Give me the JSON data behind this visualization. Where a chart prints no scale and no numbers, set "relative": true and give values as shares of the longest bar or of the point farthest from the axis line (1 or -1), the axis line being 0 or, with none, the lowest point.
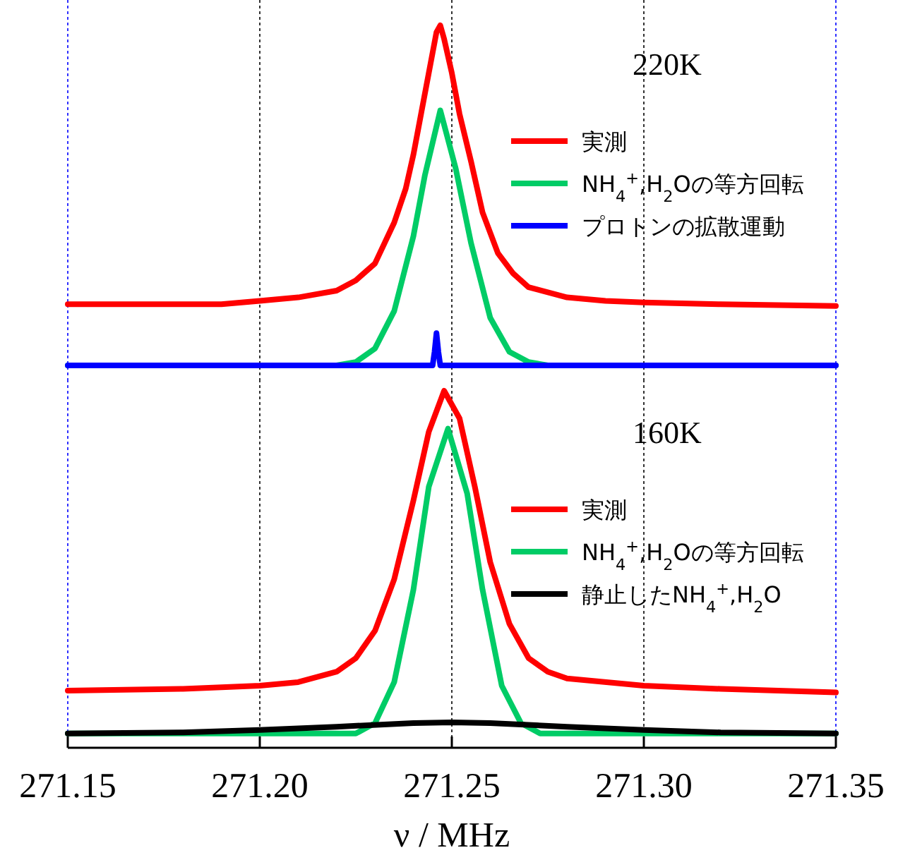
{
  "chart_data": [
    {
      "type": "line",
      "relative": true,
      "legend_title": "220K",
      "legend": "top right",
      "grid": "x",
      "tick_labels": false,
      "xlim": [
        271.15,
        271.35
      ],
      "xticks": [
        271.15,
        271.2,
        271.25,
        271.3,
        271.35
      ],
      "marker": "none",
      "line_style": "solid",
      "series": [
        {
          "name": "実測",
          "color": "#ff0000",
          "x": [
            271.15,
            271.17,
            271.19,
            271.2,
            271.21,
            271.22,
            271.225,
            271.23,
            271.235,
            271.238,
            271.24,
            271.242,
            271.244,
            271.246,
            271.247,
            271.248,
            271.25,
            271.252,
            271.255,
            271.258,
            271.262,
            271.266,
            271.27,
            271.28,
            271.29,
            271.3,
            271.32,
            271.35
          ],
          "values": [
            0.18,
            0.18,
            0.18,
            0.19,
            0.2,
            0.22,
            0.25,
            0.3,
            0.42,
            0.52,
            0.62,
            0.74,
            0.86,
            0.98,
            1.0,
            0.96,
            0.86,
            0.74,
            0.6,
            0.45,
            0.33,
            0.27,
            0.23,
            0.2,
            0.19,
            0.185,
            0.18,
            0.175
          ]
        },
        {
          "name": "NH$_{4}$$^{+}$,H$_{2}$Oの等方回転",
          "color": "#00cc66",
          "x": [
            271.15,
            271.22,
            271.225,
            271.23,
            271.235,
            271.24,
            271.243,
            271.247,
            271.251,
            271.255,
            271.26,
            271.265,
            271.27,
            271.275,
            271.35
          ],
          "values": [
            0,
            0,
            0.01,
            0.05,
            0.16,
            0.38,
            0.56,
            0.75,
            0.58,
            0.36,
            0.14,
            0.04,
            0.01,
            0,
            0
          ]
        },
        {
          "name": "プロトンの拡散運動",
          "color": "#0000ff",
          "x": [
            271.15,
            271.245,
            271.2455,
            271.246,
            271.2465,
            271.247,
            271.35
          ],
          "values": [
            0,
            0,
            0.04,
            0.095,
            0.04,
            0,
            0
          ]
        }
      ]
    },
    {
      "type": "line",
      "relative": true,
      "legend_title": "160K",
      "legend": "top right",
      "grid": "x",
      "tick_labels": "x",
      "xlabel": "ν / MHz",
      "xlim": [
        271.15,
        271.35
      ],
      "xticks": [
        271.15,
        {
          "value": 271.2,
          "label": "271.20"
        },
        271.25,
        {
          "value": 271.3,
          "label": "271.30"
        },
        271.35
      ],
      "marker": "none",
      "line_style": "solid",
      "series": [
        {
          "name": "実測",
          "color": "#ff0000",
          "x": [
            271.15,
            271.18,
            271.2,
            271.21,
            271.22,
            271.225,
            271.23,
            271.235,
            271.24,
            271.244,
            271.248,
            271.252,
            271.256,
            271.26,
            271.265,
            271.27,
            271.275,
            271.28,
            271.3,
            271.32,
            271.35
          ],
          "values": [
            0.16,
            0.165,
            0.174,
            0.184,
            0.213,
            0.251,
            0.328,
            0.472,
            0.693,
            0.885,
            1.0,
            0.923,
            0.731,
            0.52,
            0.347,
            0.251,
            0.213,
            0.194,
            0.174,
            0.165,
            0.155
          ]
        },
        {
          "name": "NH$_{4}$$^{+}$,H$_{2}$Oの等方回転",
          "color": "#00cc66",
          "x": [
            271.15,
            271.225,
            271.23,
            271.235,
            271.24,
            271.244,
            271.249,
            271.254,
            271.258,
            271.263,
            271.268,
            271.273,
            271.35
          ],
          "values": [
            0.04,
            0.04,
            0.069,
            0.184,
            0.443,
            0.731,
            0.894,
            0.712,
            0.443,
            0.174,
            0.069,
            0.04,
            0.04
          ]
        },
        {
          "name": "静止したNH$_{4}$$^{+}$,H$_{2}$O",
          "color": "#000000",
          "x": [
            271.15,
            271.18,
            271.2,
            271.22,
            271.24,
            271.25,
            271.26,
            271.28,
            271.3,
            271.32,
            271.35
          ],
          "values": [
            0.04,
            0.043,
            0.05,
            0.059,
            0.069,
            0.071,
            0.069,
            0.059,
            0.05,
            0.043,
            0.04
          ]
        }
      ]
    }
  ]
}
